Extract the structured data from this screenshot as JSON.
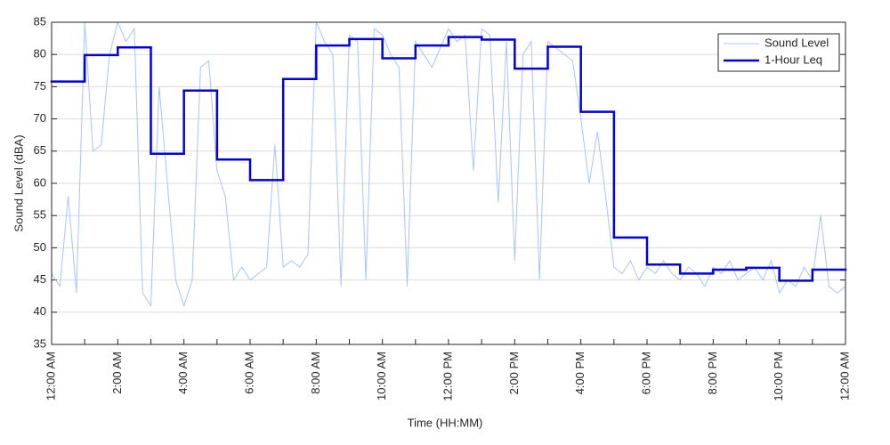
{
  "chart_data": {
    "type": "line",
    "xlabel": "Time (HH:MM)",
    "ylabel": "Sound Level (dBA)",
    "xlim": [
      0,
      24
    ],
    "xticks": [
      {
        "value": 0,
        "label": "12:00 AM"
      },
      {
        "value": 2,
        "label": "2:00 AM"
      },
      {
        "value": 4,
        "label": "4:00 AM"
      },
      {
        "value": 6,
        "label": "6:00 AM"
      },
      {
        "value": 8,
        "label": "8:00 AM"
      },
      {
        "value": 10,
        "label": "10:00 AM"
      },
      {
        "value": 12,
        "label": "12:00 PM"
      },
      {
        "value": 14,
        "label": "2:00 PM"
      },
      {
        "value": 16,
        "label": "4:00 PM"
      },
      {
        "value": 18,
        "label": "6:00 PM"
      },
      {
        "value": 20,
        "label": "8:00 PM"
      },
      {
        "value": 22,
        "label": "10:00 PM"
      },
      {
        "value": 24,
        "label": "12:00 AM"
      }
    ],
    "xminorticks": [
      1,
      3,
      5,
      7,
      9,
      11,
      13,
      15,
      17,
      19,
      21,
      23
    ],
    "ylim": [
      35,
      85
    ],
    "yticks": [
      35,
      40,
      45,
      50,
      55,
      60,
      65,
      70,
      75,
      80,
      85
    ],
    "grid": true,
    "legend": "upper right",
    "series": [
      {
        "name": "Sound Level",
        "color": "#a9c4f5",
        "x": [
          0,
          0.25,
          0.5,
          0.75,
          1,
          1.25,
          1.5,
          1.75,
          2,
          2.25,
          2.5,
          2.75,
          3,
          3.25,
          3.5,
          3.75,
          4,
          4.25,
          4.5,
          4.75,
          5,
          5.25,
          5.5,
          5.75,
          6,
          6.25,
          6.5,
          6.75,
          7,
          7.25,
          7.5,
          7.75,
          8,
          8.25,
          8.5,
          8.75,
          9,
          9.25,
          9.5,
          9.75,
          10,
          10.25,
          10.5,
          10.75,
          11,
          11.25,
          11.5,
          11.75,
          12,
          12.25,
          12.5,
          12.75,
          13,
          13.25,
          13.5,
          13.75,
          14,
          14.25,
          14.5,
          14.75,
          15,
          15.25,
          15.5,
          15.75,
          16,
          16.25,
          16.5,
          16.75,
          17,
          17.25,
          17.5,
          17.75,
          18,
          18.25,
          18.5,
          18.75,
          19,
          19.25,
          19.5,
          19.75,
          20,
          20.25,
          20.5,
          20.75,
          21,
          21.25,
          21.5,
          21.75,
          22,
          22.25,
          22.5,
          22.75,
          23,
          23.25,
          23.5,
          23.75,
          24
        ],
        "values": [
          46,
          44,
          58,
          43,
          85,
          65,
          66,
          80,
          85,
          82,
          84,
          43,
          41,
          75,
          60,
          45,
          41,
          45,
          78,
          79,
          62,
          58,
          45,
          47,
          45,
          46,
          47,
          66,
          47,
          48,
          47,
          49,
          85,
          82,
          80,
          44,
          83,
          82,
          45,
          84,
          83,
          80,
          78,
          44,
          82,
          80,
          78,
          81,
          84,
          82,
          83,
          62,
          84,
          83,
          57,
          82,
          48,
          80,
          82,
          45,
          82,
          81,
          80,
          79,
          70,
          60,
          68,
          58,
          47,
          46,
          48,
          45,
          47,
          46,
          48,
          46,
          45,
          47,
          46,
          44,
          47,
          46,
          48,
          45,
          46,
          47,
          45,
          48,
          43,
          45,
          44,
          47,
          45,
          55,
          44,
          43,
          44
        ]
      },
      {
        "name": "1-Hour Leq",
        "color": "#0000e0",
        "step": "post",
        "x": [
          0,
          1,
          2,
          3,
          4,
          5,
          6,
          7,
          8,
          9,
          10,
          11,
          12,
          13,
          14,
          15,
          16,
          17,
          18,
          19,
          20,
          21,
          22,
          23
        ],
        "values": [
          75.8,
          79.9,
          81.1,
          64.6,
          74.4,
          63.7,
          60.5,
          76.2,
          81.4,
          82.4,
          79.4,
          81.4,
          82.7,
          82.3,
          77.8,
          81.2,
          71.1,
          51.6,
          47.4,
          46.0,
          46.6,
          46.9,
          44.9,
          46.6
        ]
      }
    ]
  }
}
